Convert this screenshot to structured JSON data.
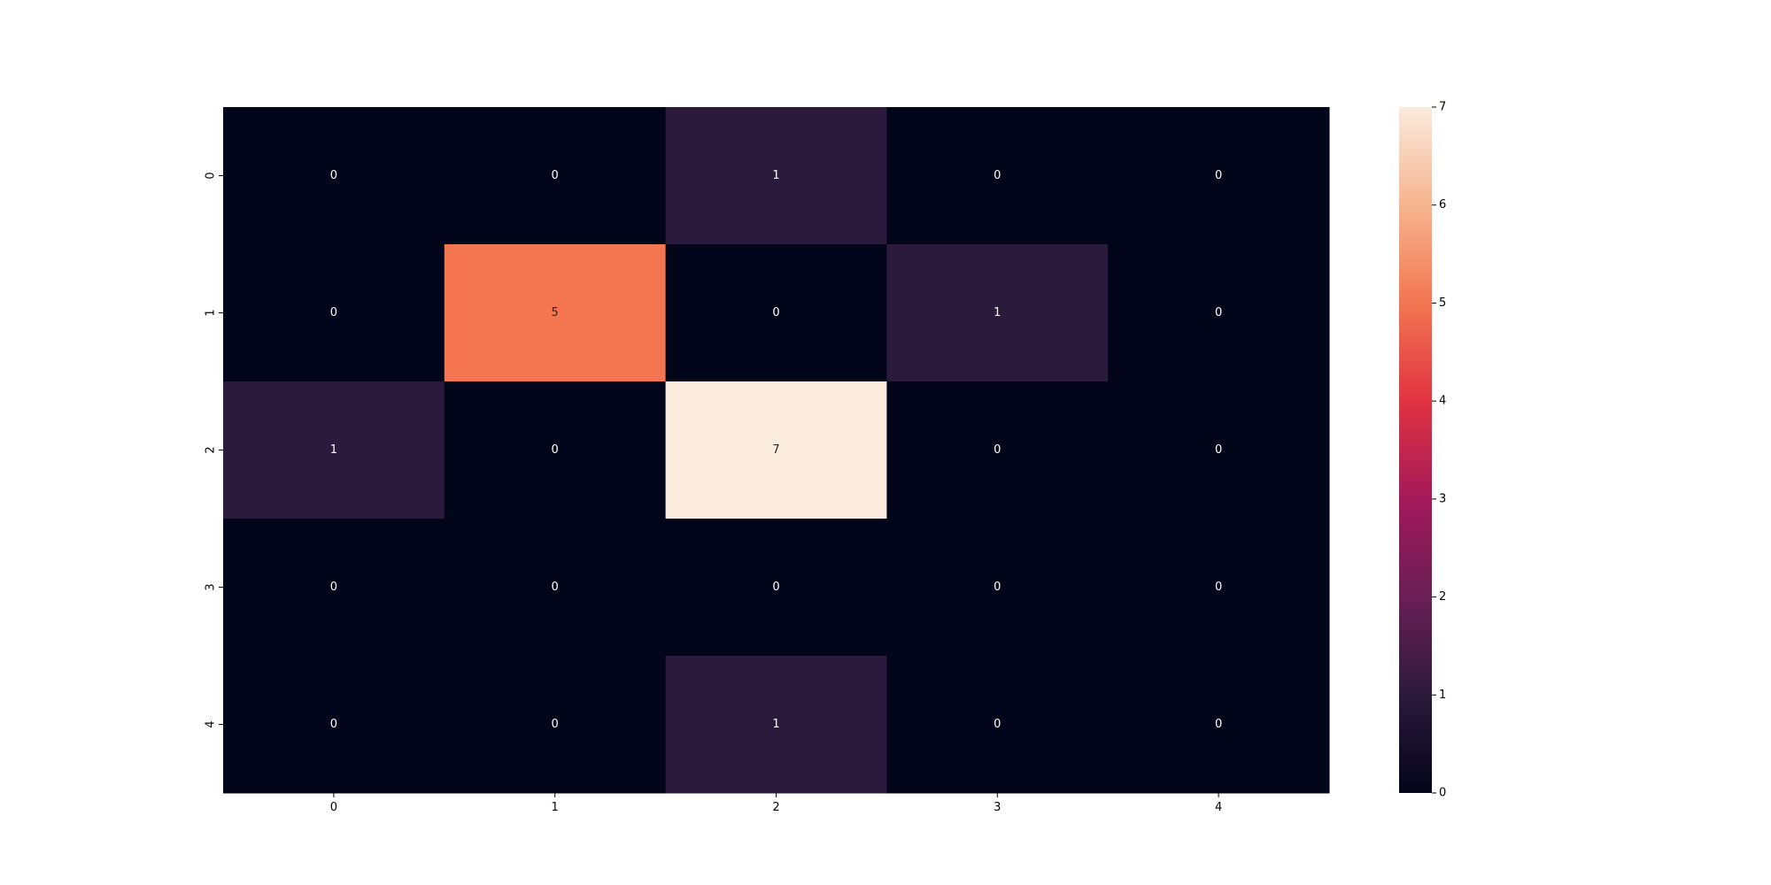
{
  "chart_data": {
    "type": "heatmap",
    "title": "",
    "xlabel": "",
    "ylabel": "",
    "x_tick_labels": [
      "0",
      "1",
      "2",
      "3",
      "4"
    ],
    "y_tick_labels": [
      "0",
      "1",
      "2",
      "3",
      "4"
    ],
    "values": [
      [
        0,
        0,
        1,
        0,
        0
      ],
      [
        0,
        5,
        0,
        1,
        0
      ],
      [
        1,
        0,
        7,
        0,
        0
      ],
      [
        0,
        0,
        0,
        0,
        0
      ],
      [
        0,
        0,
        1,
        0,
        0
      ]
    ],
    "annotations": true,
    "colorbar": {
      "vmin": 0,
      "vmax": 7,
      "tick_labels": [
        "0",
        "1",
        "2",
        "3",
        "4",
        "5",
        "6",
        "7"
      ]
    },
    "colormap": "rocket",
    "colormap_stops": [
      "#03051a",
      "#2b1a3b",
      "#6a1f56",
      "#a4195a",
      "#e13342",
      "#f37651",
      "#f6b48f",
      "#faebdd"
    ],
    "grid": false
  }
}
